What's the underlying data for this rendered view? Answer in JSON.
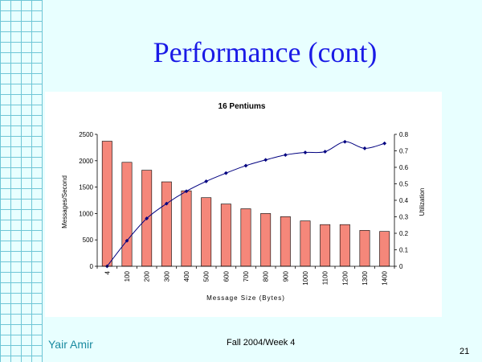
{
  "slide": {
    "title": "Performance (cont)",
    "footer_left": "Yair Amir",
    "footer_center": "Fall 2004/Week 4",
    "page_number": "21"
  },
  "colors": {
    "background": "#e8ffff",
    "grid_lines": "#6fc6d6",
    "title": "#1a1ae6",
    "bar_fill": "#f5877a",
    "line": "#000080"
  },
  "chart_data": {
    "type": "bar",
    "title": "16 Pentiums",
    "xlabel": "Message Size (Bytes)",
    "ylabel": "Messages/Second",
    "y2label": "Utilization",
    "categories": [
      "4",
      "100",
      "200",
      "300",
      "400",
      "500",
      "600",
      "700",
      "800",
      "900",
      "1000",
      "1100",
      "1200",
      "1300",
      "1400"
    ],
    "ylim": [
      0,
      2500
    ],
    "yticks": [
      "0",
      "500",
      "1000",
      "1500",
      "2000",
      "2500"
    ],
    "y2lim": [
      0,
      0.8
    ],
    "y2ticks": [
      "0",
      "0.1",
      "0.2",
      "0.3",
      "0.4",
      "0.5",
      "0.6",
      "0.7",
      "0.8"
    ],
    "grid": false,
    "legend": "none",
    "series": [
      {
        "type": "bar",
        "axis": "left",
        "values": [
          2370,
          1970,
          1820,
          1600,
          1430,
          1300,
          1180,
          1090,
          1000,
          940,
          860,
          790,
          790,
          680,
          660
        ]
      },
      {
        "type": "line",
        "axis": "right",
        "values": [
          0.0,
          0.155,
          0.29,
          0.38,
          0.455,
          0.515,
          0.565,
          0.61,
          0.645,
          0.675,
          0.69,
          0.695,
          0.755,
          0.715,
          0.745
        ]
      }
    ]
  }
}
